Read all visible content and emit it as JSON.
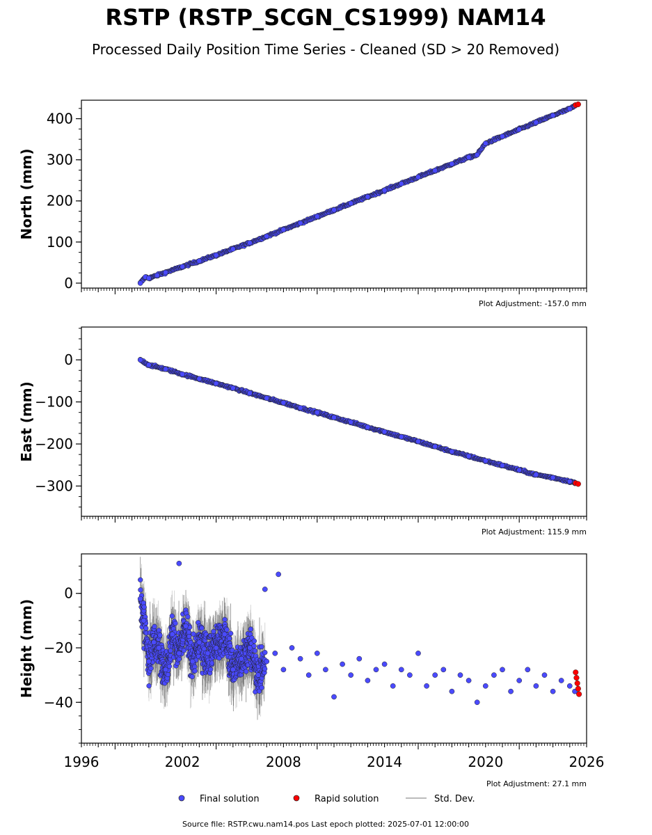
{
  "title": "RSTP (RSTP_SCGN_CS1999) NAM14",
  "subtitle": "Processed Daily Position Time Series - Cleaned (SD > 20 Removed)",
  "legend": {
    "final_label": "Final solution",
    "rapid_label": "Rapid solution",
    "std_label": "Std. Dev."
  },
  "colors": {
    "final": "#4a4aff",
    "rapid": "#ff0000",
    "std": "#808080",
    "edge": "#222222"
  },
  "footer": "Source file: RSTP.cwu.nam14.pos  Last epoch plotted: 2025-07-01 12:00:00",
  "chart_data": [
    {
      "type": "scatter",
      "ylabel": "North (mm)",
      "adjustment": "Plot Adjustment: -157.0 mm",
      "xlim": [
        1996,
        2026
      ],
      "ylim": [
        -12,
        445
      ],
      "yticks": [
        0,
        100,
        200,
        300,
        400
      ],
      "ytick_labels": [
        "0",
        "100",
        "200",
        "300",
        "400"
      ],
      "grid": false,
      "legend_position": "below",
      "series": [
        {
          "name": "Final solution",
          "x": [
            1999.5,
            1999.8,
            2000.0,
            2000.5,
            2001.0,
            2002.0,
            2003.0,
            2004.0,
            2005.0,
            2006.0,
            2007.0,
            2008.0,
            2009.0,
            2010.0,
            2011.0,
            2012.0,
            2013.0,
            2014.0,
            2015.0,
            2016.0,
            2017.0,
            2018.0,
            2019.0,
            2019.5,
            2020.0,
            2021.0,
            2022.0,
            2023.0,
            2024.0,
            2025.0,
            2025.3
          ],
          "y": [
            0,
            15,
            12,
            19,
            26,
            40,
            54,
            68,
            83,
            98,
            114,
            130,
            146,
            162,
            178,
            194,
            210,
            226,
            242,
            258,
            274,
            290,
            306,
            312,
            340,
            357,
            374,
            391,
            408,
            424,
            431
          ]
        },
        {
          "name": "Rapid solution",
          "x": [
            2025.35,
            2025.5
          ],
          "y": [
            433,
            435
          ]
        }
      ]
    },
    {
      "type": "scatter",
      "ylabel": "East (mm)",
      "adjustment": "Plot Adjustment: 115.9 mm",
      "xlim": [
        1996,
        2026
      ],
      "ylim": [
        -372,
        78
      ],
      "yticks": [
        0,
        -100,
        -200,
        -300
      ],
      "ytick_labels": [
        "0",
        "−100",
        "−200",
        "−300"
      ],
      "grid": false,
      "legend_position": "below",
      "series": [
        {
          "name": "Final solution",
          "x": [
            1999.5,
            2000.0,
            2001.0,
            2002.0,
            2003.0,
            2004.0,
            2005.0,
            2006.0,
            2007.0,
            2008.0,
            2009.0,
            2010.0,
            2011.0,
            2012.0,
            2013.0,
            2014.0,
            2015.0,
            2016.0,
            2017.0,
            2018.0,
            2019.0,
            2020.0,
            2021.0,
            2022.0,
            2023.0,
            2024.0,
            2025.0,
            2025.3
          ],
          "y": [
            0,
            -12,
            -22,
            -34,
            -45,
            -56,
            -67,
            -79,
            -91,
            -102,
            -114,
            -125,
            -137,
            -148,
            -160,
            -171,
            -183,
            -194,
            -206,
            -218,
            -229,
            -240,
            -251,
            -262,
            -273,
            -280,
            -289,
            -292
          ]
        },
        {
          "name": "Rapid solution",
          "x": [
            2025.35,
            2025.5
          ],
          "y": [
            -293,
            -295
          ]
        }
      ]
    },
    {
      "type": "scatter",
      "ylabel": "Height (mm)",
      "adjustment": "Plot Adjustment: 27.1 mm",
      "xlim": [
        1996,
        2026
      ],
      "ylim": [
        -55,
        14.5
      ],
      "yticks": [
        0,
        -20,
        -40
      ],
      "ytick_labels": [
        "0",
        "−20",
        "−40"
      ],
      "xticks": [
        1996,
        2002,
        2008,
        2014,
        2020,
        2026
      ],
      "xtick_labels": [
        "1996",
        "2002",
        "2008",
        "2014",
        "2020",
        "2026"
      ],
      "grid": false,
      "legend_position": "below",
      "series": [
        {
          "name": "Final solution",
          "x": [
            1999.5,
            1999.7,
            2000.0,
            2000.3,
            2000.6,
            2001.0,
            2001.4,
            2001.8,
            2002.2,
            2002.6,
            2003.0,
            2003.5,
            2004.0,
            2004.5,
            2005.0,
            2005.5,
            2006.0,
            2006.5,
            2007.0,
            2007.5,
            2008.0,
            2008.5,
            2009.0,
            2009.5,
            2010.0,
            2010.5,
            2011.0,
            2011.5,
            2012.0,
            2012.5,
            2013.0,
            2013.5,
            2014.0,
            2014.5,
            2015.0,
            2015.5,
            2016.0,
            2016.5,
            2017.0,
            2017.5,
            2018.0,
            2018.5,
            2019.0,
            2019.5,
            2020.0,
            2020.5,
            2021.0,
            2021.5,
            2022.0,
            2022.5,
            2023.0,
            2023.5,
            2024.0,
            2024.5,
            2025.0,
            2025.3,
            2001.8,
            2007.7,
            2006.9
          ],
          "y": [
            -2,
            -10,
            -25,
            -18,
            -20,
            -28,
            -15,
            -22,
            -12,
            -25,
            -18,
            -22,
            -20,
            -15,
            -28,
            -24,
            -20,
            -30,
            -25,
            -22,
            -28,
            -20,
            -24,
            -30,
            -22,
            -28,
            -38,
            -26,
            -30,
            -24,
            -32,
            -28,
            -26,
            -34,
            -28,
            -30,
            -22,
            -34,
            -30,
            -28,
            -36,
            -30,
            -32,
            -40,
            -34,
            -30,
            -28,
            -36,
            -32,
            -28,
            -34,
            -30,
            -36,
            -32,
            -34,
            -36,
            11,
            7,
            1.5
          ]
        },
        {
          "name": "Rapid solution",
          "x": [
            2025.35,
            2025.4,
            2025.45,
            2025.5,
            2025.55
          ],
          "y": [
            -29,
            -31,
            -33,
            -35,
            -37
          ]
        }
      ]
    }
  ]
}
